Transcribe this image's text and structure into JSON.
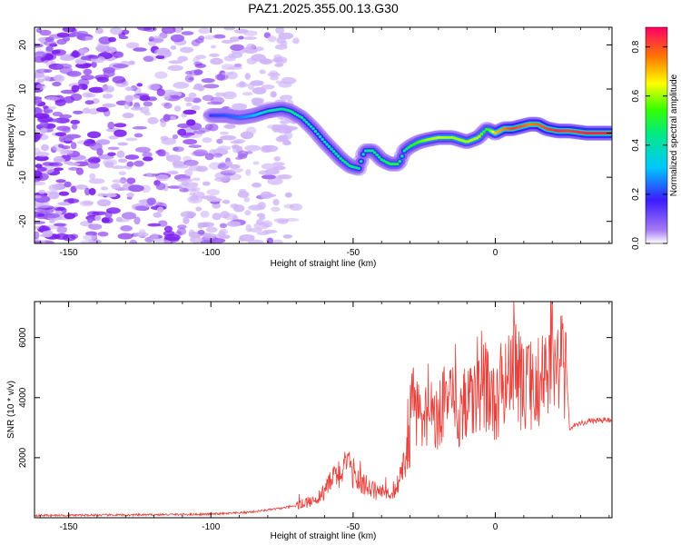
{
  "chart_data": [
    {
      "type": "heatmap",
      "title": "PAZ1.2025.355.00.13.G30",
      "xlabel": "Height of straight line (km)",
      "ylabel": "Frequency (Hz)",
      "xlim": [
        -162,
        41
      ],
      "ylim": [
        -25,
        24
      ],
      "xticks": [
        -150,
        -100,
        -50,
        0
      ],
      "yticks": [
        -20,
        -10,
        0,
        10,
        20
      ],
      "colorbar": {
        "label": "Normalized spectral amplitude",
        "range": [
          0.0,
          0.88
        ],
        "ticks": [
          0.0,
          0.2,
          0.4,
          0.6,
          0.8
        ]
      },
      "ridge": {
        "x": [
          -100,
          -95,
          -90,
          -85,
          -80,
          -75,
          -72,
          -68,
          -64,
          -60,
          -57,
          -54,
          -51,
          -48,
          -46,
          -43,
          -40,
          -37,
          -34,
          -32,
          -30,
          -27,
          -24,
          -20,
          -15,
          -10,
          -6,
          -3,
          0,
          3,
          6,
          9,
          12,
          15,
          18,
          22,
          26,
          32,
          41
        ],
        "y": [
          4,
          4,
          3.5,
          4,
          5,
          5.5,
          5,
          3.5,
          1,
          -2,
          -4,
          -6,
          -7.5,
          -8,
          -4,
          -4,
          -6,
          -7,
          -7,
          -4,
          -3,
          -2,
          -1.5,
          -1,
          -1,
          -2,
          -1,
          1,
          0,
          1,
          1,
          1.5,
          2,
          2,
          1,
          0.5,
          0.5,
          0,
          0
        ],
        "peak_amplitude": [
          0.2,
          0.22,
          0.25,
          0.3,
          0.4,
          0.42,
          0.45,
          0.42,
          0.4,
          0.4,
          0.42,
          0.45,
          0.45,
          0.42,
          0.4,
          0.45,
          0.45,
          0.5,
          0.48,
          0.42,
          0.5,
          0.55,
          0.6,
          0.62,
          0.6,
          0.6,
          0.62,
          0.5,
          0.7,
          0.75,
          0.82,
          0.8,
          0.75,
          0.78,
          0.82,
          0.85,
          0.82,
          0.85,
          0.85
        ]
      }
    },
    {
      "type": "line",
      "xlabel": "Height of straight line (km)",
      "ylabel": "SNR (10 * v/v)",
      "xlim": [
        -162,
        41
      ],
      "ylim": [
        0,
        7200
      ],
      "xticks": [
        -150,
        -100,
        -50,
        0
      ],
      "yticks": [
        2000,
        4000,
        6000
      ],
      "color": "#e8403a",
      "series": [
        {
          "name": "SNR",
          "x": [
            -162,
            -150,
            -140,
            -130,
            -120,
            -110,
            -100,
            -95,
            -90,
            -85,
            -80,
            -75,
            -70,
            -65,
            -62,
            -60,
            -58,
            -55,
            -52,
            -50,
            -48,
            -46,
            -44,
            -42,
            -40,
            -38,
            -36,
            -34,
            -32,
            -30,
            -29,
            -28,
            -27,
            -26,
            -24,
            -22,
            -20,
            -18,
            -16,
            -14,
            -12,
            -10,
            -8,
            -6,
            -4,
            -2,
            0,
            2,
            4,
            6,
            7,
            8,
            10,
            12,
            14,
            16,
            18,
            20,
            22,
            24,
            25,
            26,
            28,
            32,
            36,
            41
          ],
          "y": [
            80,
            80,
            90,
            90,
            100,
            110,
            120,
            140,
            160,
            200,
            260,
            320,
            400,
            550,
            700,
            900,
            1200,
            1500,
            1700,
            1500,
            1300,
            1100,
            950,
            900,
            850,
            800,
            900,
            1100,
            1800,
            2600,
            4200,
            3400,
            3900,
            3000,
            3400,
            3600,
            3200,
            4200,
            3700,
            3800,
            3400,
            4200,
            3800,
            4100,
            4300,
            4500,
            3300,
            4400,
            4600,
            5000,
            6600,
            4700,
            4200,
            4500,
            4000,
            4800,
            4900,
            5000,
            5000,
            5100,
            5000,
            3000,
            3100,
            3200,
            3250,
            3250
          ]
        }
      ]
    }
  ]
}
